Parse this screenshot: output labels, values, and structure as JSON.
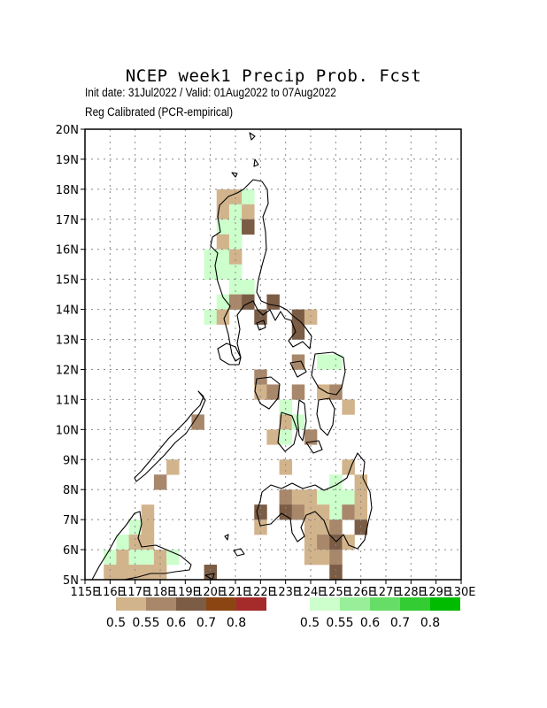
{
  "header": {
    "title": "NCEP week1 Precip Prob. Fcst",
    "init_valid": "Init date: 31Jul2022 / Valid: 01Aug2022 to 07Aug2022",
    "calibration": "Reg Calibrated (PCR-empirical)"
  },
  "map": {
    "lat_labels": [
      "20N",
      "19N",
      "18N",
      "17N",
      "16N",
      "15N",
      "14N",
      "13N",
      "12N",
      "11N",
      "10N",
      "9N",
      "8N",
      "7N",
      "6N",
      "5N"
    ],
    "lon_labels": [
      "115E",
      "116E",
      "117E",
      "118E",
      "119E",
      "120E",
      "121E",
      "122E",
      "123E",
      "124E",
      "125E",
      "126E",
      "127E",
      "128E",
      "129E",
      "130E"
    ],
    "grid": "dotted"
  },
  "legend": {
    "dry": {
      "colors": [
        "#d2b48c",
        "#a8876a",
        "#7b5c45",
        "#8b4513",
        "#a52a2a"
      ],
      "labels": [
        "0.5",
        "0.55",
        "0.6",
        "0.7",
        "0.8"
      ]
    },
    "wet": {
      "colors": [
        "#ccffcc",
        "#99ee99",
        "#66dd66",
        "#33cc33",
        "#00bb00"
      ],
      "labels": [
        "0.5",
        "0.55",
        "0.6",
        "0.7",
        "0.8"
      ]
    }
  },
  "cells": [
    {
      "lon": 120.5,
      "lat": 17.75,
      "c": "#d2b48c"
    },
    {
      "lon": 121.0,
      "lat": 17.75,
      "c": "#d2b48c"
    },
    {
      "lon": 121.5,
      "lat": 17.75,
      "c": "#ccffcc"
    },
    {
      "lon": 120.5,
      "lat": 17.25,
      "c": "#d2b48c"
    },
    {
      "lon": 121.0,
      "lat": 17.25,
      "c": "#ccffcc"
    },
    {
      "lon": 121.5,
      "lat": 17.25,
      "c": "#d2b48c"
    },
    {
      "lon": 120.5,
      "lat": 16.75,
      "c": "#ccffcc"
    },
    {
      "lon": 121.0,
      "lat": 16.75,
      "c": "#ccffcc"
    },
    {
      "lon": 121.5,
      "lat": 16.75,
      "c": "#7b5c45"
    },
    {
      "lon": 120.5,
      "lat": 16.25,
      "c": "#d2b48c"
    },
    {
      "lon": 121.0,
      "lat": 16.25,
      "c": "#ccffcc"
    },
    {
      "lon": 120.0,
      "lat": 15.75,
      "c": "#ccffcc"
    },
    {
      "lon": 120.5,
      "lat": 15.75,
      "c": "#ccffcc"
    },
    {
      "lon": 121.0,
      "lat": 15.75,
      "c": "#d2b48c"
    },
    {
      "lon": 120.0,
      "lat": 15.25,
      "c": "#ccffcc"
    },
    {
      "lon": 120.5,
      "lat": 15.25,
      "c": "#ccffcc"
    },
    {
      "lon": 121.0,
      "lat": 15.25,
      "c": "#ccffcc"
    },
    {
      "lon": 121.0,
      "lat": 14.75,
      "c": "#ccffcc"
    },
    {
      "lon": 121.5,
      "lat": 14.75,
      "c": "#ccffcc"
    },
    {
      "lon": 120.5,
      "lat": 14.25,
      "c": "#ccffcc"
    },
    {
      "lon": 121.0,
      "lat": 14.25,
      "c": "#a8876a"
    },
    {
      "lon": 121.5,
      "lat": 14.25,
      "c": "#7b5c45"
    },
    {
      "lon": 122.5,
      "lat": 14.25,
      "c": "#7b5c45"
    },
    {
      "lon": 120.0,
      "lat": 13.75,
      "c": "#ccffcc"
    },
    {
      "lon": 120.5,
      "lat": 13.75,
      "c": "#d2b48c"
    },
    {
      "lon": 122.0,
      "lat": 13.75,
      "c": "#7b5c45"
    },
    {
      "lon": 123.5,
      "lat": 13.75,
      "c": "#7b5c45"
    },
    {
      "lon": 124.0,
      "lat": 13.75,
      "c": "#d2b48c"
    },
    {
      "lon": 123.5,
      "lat": 13.25,
      "c": "#7b5c45"
    },
    {
      "lon": 123.5,
      "lat": 12.25,
      "c": "#a8876a"
    },
    {
      "lon": 124.5,
      "lat": 12.25,
      "c": "#ccffcc"
    },
    {
      "lon": 125.0,
      "lat": 12.25,
      "c": "#ccffcc"
    },
    {
      "lon": 122.0,
      "lat": 11.75,
      "c": "#a8876a"
    },
    {
      "lon": 122.0,
      "lat": 11.25,
      "c": "#d2b48c"
    },
    {
      "lon": 122.5,
      "lat": 11.25,
      "c": "#a8876a"
    },
    {
      "lon": 123.5,
      "lat": 11.25,
      "c": "#a8876a"
    },
    {
      "lon": 124.5,
      "lat": 11.25,
      "c": "#d2b48c"
    },
    {
      "lon": 125.0,
      "lat": 11.25,
      "c": "#a8876a"
    },
    {
      "lon": 123.0,
      "lat": 10.75,
      "c": "#ccffcc"
    },
    {
      "lon": 125.5,
      "lat": 10.75,
      "c": "#d2b48c"
    },
    {
      "lon": 119.5,
      "lat": 10.25,
      "c": "#a8876a"
    },
    {
      "lon": 123.0,
      "lat": 10.25,
      "c": "#d2b48c"
    },
    {
      "lon": 123.5,
      "lat": 10.25,
      "c": "#ccffcc"
    },
    {
      "lon": 122.5,
      "lat": 9.75,
      "c": "#d2b48c"
    },
    {
      "lon": 123.0,
      "lat": 9.75,
      "c": "#ccffcc"
    },
    {
      "lon": 124.0,
      "lat": 9.75,
      "c": "#a8876a"
    },
    {
      "lon": 118.5,
      "lat": 8.75,
      "c": "#d2b48c"
    },
    {
      "lon": 123.0,
      "lat": 8.75,
      "c": "#d2b48c"
    },
    {
      "lon": 125.5,
      "lat": 8.75,
      "c": "#d2b48c"
    },
    {
      "lon": 118.0,
      "lat": 8.25,
      "c": "#a8876a"
    },
    {
      "lon": 125.0,
      "lat": 8.25,
      "c": "#ccffcc"
    },
    {
      "lon": 126.0,
      "lat": 8.25,
      "c": "#d2b48c"
    },
    {
      "lon": 123.0,
      "lat": 7.75,
      "c": "#a8876a"
    },
    {
      "lon": 123.5,
      "lat": 7.75,
      "c": "#d2b48c"
    },
    {
      "lon": 124.0,
      "lat": 7.75,
      "c": "#d2b48c"
    },
    {
      "lon": 124.5,
      "lat": 7.75,
      "c": "#ccffcc"
    },
    {
      "lon": 125.0,
      "lat": 7.75,
      "c": "#ccffcc"
    },
    {
      "lon": 125.5,
      "lat": 7.75,
      "c": "#ccffcc"
    },
    {
      "lon": 126.0,
      "lat": 7.75,
      "c": "#d2b48c"
    },
    {
      "lon": 122.0,
      "lat": 7.25,
      "c": "#7b5c45"
    },
    {
      "lon": 123.0,
      "lat": 7.25,
      "c": "#7b5c45"
    },
    {
      "lon": 123.5,
      "lat": 7.25,
      "c": "#a8876a"
    },
    {
      "lon": 124.0,
      "lat": 7.25,
      "c": "#d2b48c"
    },
    {
      "lon": 124.5,
      "lat": 7.25,
      "c": "#d2b48c"
    },
    {
      "lon": 125.0,
      "lat": 7.25,
      "c": "#ccffcc"
    },
    {
      "lon": 125.5,
      "lat": 7.25,
      "c": "#a8876a"
    },
    {
      "lon": 126.0,
      "lat": 7.25,
      "c": "#d2b48c"
    },
    {
      "lon": 117.5,
      "lat": 7.25,
      "c": "#d2b48c"
    },
    {
      "lon": 122.0,
      "lat": 6.75,
      "c": "#d2b48c"
    },
    {
      "lon": 124.0,
      "lat": 6.75,
      "c": "#d2b48c"
    },
    {
      "lon": 124.5,
      "lat": 6.75,
      "c": "#d2b48c"
    },
    {
      "lon": 125.0,
      "lat": 6.75,
      "c": "#a8876a"
    },
    {
      "lon": 126.0,
      "lat": 6.75,
      "c": "#7b5c45"
    },
    {
      "lon": 117.0,
      "lat": 6.75,
      "c": "#ccffcc"
    },
    {
      "lon": 117.5,
      "lat": 6.75,
      "c": "#d2b48c"
    },
    {
      "lon": 124.0,
      "lat": 6.25,
      "c": "#d2b48c"
    },
    {
      "lon": 124.5,
      "lat": 6.25,
      "c": "#a8876a"
    },
    {
      "lon": 125.0,
      "lat": 6.25,
      "c": "#7b5c45"
    },
    {
      "lon": 125.5,
      "lat": 6.25,
      "c": "#d2b48c"
    },
    {
      "lon": 116.5,
      "lat": 6.25,
      "c": "#ccffcc"
    },
    {
      "lon": 117.0,
      "lat": 6.25,
      "c": "#d2b48c"
    },
    {
      "lon": 117.5,
      "lat": 6.25,
      "c": "#d2b48c"
    },
    {
      "lon": 124.0,
      "lat": 5.75,
      "c": "#d2b48c"
    },
    {
      "lon": 124.5,
      "lat": 5.75,
      "c": "#d2b48c"
    },
    {
      "lon": 125.0,
      "lat": 5.75,
      "c": "#a8876a"
    },
    {
      "lon": 116.0,
      "lat": 5.75,
      "c": "#ccffcc"
    },
    {
      "lon": 116.5,
      "lat": 5.75,
      "c": "#d2b48c"
    },
    {
      "lon": 117.0,
      "lat": 5.75,
      "c": "#ccffcc"
    },
    {
      "lon": 117.5,
      "lat": 5.75,
      "c": "#ccffcc"
    },
    {
      "lon": 118.0,
      "lat": 5.75,
      "c": "#d2b48c"
    },
    {
      "lon": 118.5,
      "lat": 5.75,
      "c": "#ccffcc"
    },
    {
      "lon": 125.0,
      "lat": 5.25,
      "c": "#7b5c45"
    },
    {
      "lon": 116.0,
      "lat": 5.25,
      "c": "#d2b48c"
    },
    {
      "lon": 116.5,
      "lat": 5.25,
      "c": "#d2b48c"
    },
    {
      "lon": 117.0,
      "lat": 5.25,
      "c": "#d2b48c"
    },
    {
      "lon": 117.5,
      "lat": 5.25,
      "c": "#d2b48c"
    },
    {
      "lon": 118.0,
      "lat": 5.25,
      "c": "#d2b48c"
    },
    {
      "lon": 120.0,
      "lat": 5.25,
      "c": "#7b5c45"
    }
  ]
}
